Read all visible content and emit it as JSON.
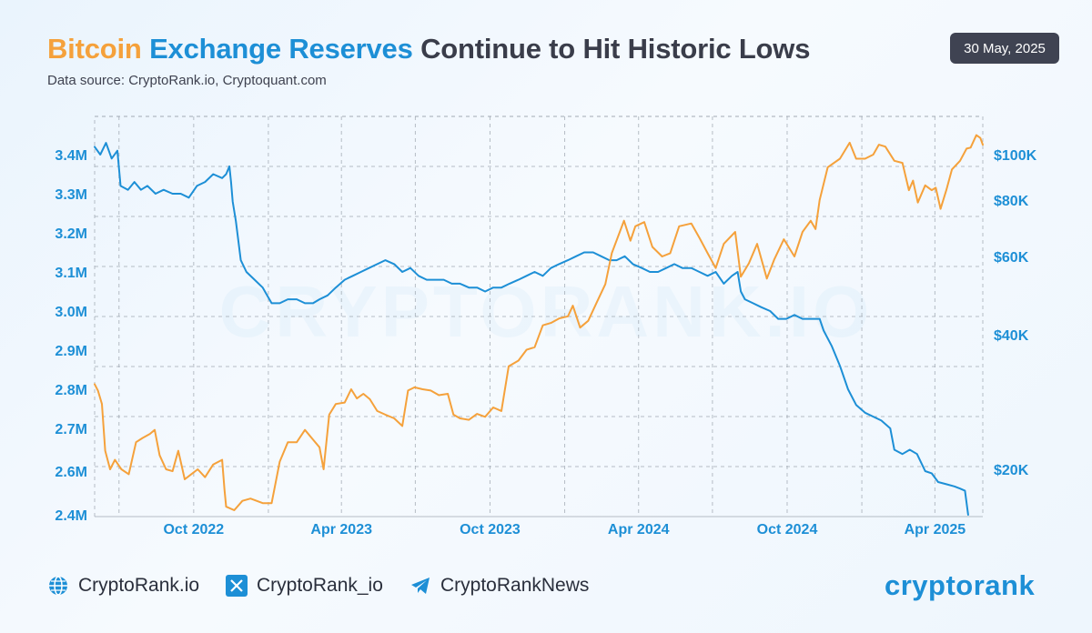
{
  "header": {
    "title_part1": "Bitcoin",
    "title_part2": "Exchange Reserves",
    "title_part3": "Continue to Hit Historic Lows",
    "subtitle": "Data source: CryptoRank.io, Cryptoquant.com",
    "date": "30 May, 2025"
  },
  "watermark": "CRYPTORANK.IO",
  "footer": {
    "website": "CryptoRank.io",
    "x_handle": "CryptoRank_io",
    "telegram": "CryptoRankNews",
    "brand": "cryptorank"
  },
  "colors": {
    "reserves": "#1d8fd6",
    "price": "#f5a13b",
    "title_dark": "#3a3d4a",
    "badge_bg": "#3f4352"
  },
  "chart_data": {
    "type": "line",
    "grid": true,
    "x_ticks": [
      {
        "label": "Oct 2022",
        "date": "2022-10-01"
      },
      {
        "label": "Apr 2023",
        "date": "2023-04-01"
      },
      {
        "label": "Oct 2023",
        "date": "2023-10-01"
      },
      {
        "label": "Apr 2024",
        "date": "2024-04-01"
      },
      {
        "label": "Oct 2024",
        "date": "2024-10-01"
      },
      {
        "label": "Apr 2025",
        "date": "2025-04-01"
      }
    ],
    "xlim": [
      "2022-06-01",
      "2025-05-30"
    ],
    "y_left": {
      "ticks": [
        {
          "label": "3.4M",
          "value": 3400000
        },
        {
          "label": "3.3M",
          "value": 3300000
        },
        {
          "label": "3.2M",
          "value": 3200000
        },
        {
          "label": "3.1M",
          "value": 3100000
        },
        {
          "label": "3.0M",
          "value": 3000000
        },
        {
          "label": "2.9M",
          "value": 2900000
        },
        {
          "label": "2.8M",
          "value": 2800000
        },
        {
          "label": "2.7M",
          "value": 2700000
        },
        {
          "label": "2.6M",
          "value": 2600000
        },
        {
          "label": "2.4M",
          "value": 2400000
        }
      ]
    },
    "y_right": {
      "ticks": [
        {
          "label": "$100K",
          "value": 100000
        },
        {
          "label": "$80K",
          "value": 80000
        },
        {
          "label": "$60K",
          "value": 60000
        },
        {
          "label": "$40K",
          "value": 40000
        },
        {
          "label": "$20K",
          "value": 20000
        }
      ]
    },
    "series": [
      {
        "axis": "left",
        "color": "#1d8fd6",
        "points": [
          [
            "2022-06-01",
            3420000
          ],
          [
            "2022-06-08",
            3400000
          ],
          [
            "2022-06-15",
            3430000
          ],
          [
            "2022-06-22",
            3390000
          ],
          [
            "2022-06-29",
            3410000
          ],
          [
            "2022-07-03",
            3320000
          ],
          [
            "2022-07-12",
            3310000
          ],
          [
            "2022-07-20",
            3330000
          ],
          [
            "2022-07-28",
            3310000
          ],
          [
            "2022-08-05",
            3320000
          ],
          [
            "2022-08-15",
            3300000
          ],
          [
            "2022-08-25",
            3310000
          ],
          [
            "2022-09-05",
            3300000
          ],
          [
            "2022-09-15",
            3300000
          ],
          [
            "2022-09-25",
            3290000
          ],
          [
            "2022-10-05",
            3320000
          ],
          [
            "2022-10-15",
            3330000
          ],
          [
            "2022-10-25",
            3350000
          ],
          [
            "2022-11-05",
            3340000
          ],
          [
            "2022-11-10",
            3350000
          ],
          [
            "2022-11-14",
            3370000
          ],
          [
            "2022-11-16",
            3330000
          ],
          [
            "2022-11-18",
            3280000
          ],
          [
            "2022-11-22",
            3230000
          ],
          [
            "2022-11-28",
            3130000
          ],
          [
            "2022-12-05",
            3100000
          ],
          [
            "2022-12-15",
            3080000
          ],
          [
            "2022-12-25",
            3060000
          ],
          [
            "2023-01-05",
            3020000
          ],
          [
            "2023-01-15",
            3020000
          ],
          [
            "2023-01-25",
            3030000
          ],
          [
            "2023-02-05",
            3030000
          ],
          [
            "2023-02-15",
            3020000
          ],
          [
            "2023-02-25",
            3020000
          ],
          [
            "2023-03-05",
            3030000
          ],
          [
            "2023-03-15",
            3040000
          ],
          [
            "2023-03-25",
            3060000
          ],
          [
            "2023-04-05",
            3080000
          ],
          [
            "2023-04-15",
            3090000
          ],
          [
            "2023-04-25",
            3100000
          ],
          [
            "2023-05-05",
            3110000
          ],
          [
            "2023-05-15",
            3120000
          ],
          [
            "2023-05-25",
            3130000
          ],
          [
            "2023-06-05",
            3120000
          ],
          [
            "2023-06-15",
            3100000
          ],
          [
            "2023-06-25",
            3110000
          ],
          [
            "2023-07-05",
            3090000
          ],
          [
            "2023-07-15",
            3080000
          ],
          [
            "2023-07-25",
            3080000
          ],
          [
            "2023-08-05",
            3080000
          ],
          [
            "2023-08-15",
            3070000
          ],
          [
            "2023-08-25",
            3070000
          ],
          [
            "2023-09-05",
            3060000
          ],
          [
            "2023-09-15",
            3060000
          ],
          [
            "2023-09-25",
            3050000
          ],
          [
            "2023-10-05",
            3060000
          ],
          [
            "2023-10-15",
            3060000
          ],
          [
            "2023-10-25",
            3070000
          ],
          [
            "2023-11-05",
            3080000
          ],
          [
            "2023-11-15",
            3090000
          ],
          [
            "2023-11-25",
            3100000
          ],
          [
            "2023-12-05",
            3090000
          ],
          [
            "2023-12-15",
            3110000
          ],
          [
            "2023-12-25",
            3120000
          ],
          [
            "2024-01-05",
            3130000
          ],
          [
            "2024-01-15",
            3140000
          ],
          [
            "2024-01-25",
            3150000
          ],
          [
            "2024-02-05",
            3150000
          ],
          [
            "2024-02-15",
            3140000
          ],
          [
            "2024-02-25",
            3130000
          ],
          [
            "2024-03-05",
            3130000
          ],
          [
            "2024-03-15",
            3140000
          ],
          [
            "2024-03-25",
            3120000
          ],
          [
            "2024-04-05",
            3110000
          ],
          [
            "2024-04-15",
            3100000
          ],
          [
            "2024-04-25",
            3100000
          ],
          [
            "2024-05-05",
            3110000
          ],
          [
            "2024-05-15",
            3120000
          ],
          [
            "2024-05-25",
            3110000
          ],
          [
            "2024-06-05",
            3110000
          ],
          [
            "2024-06-15",
            3100000
          ],
          [
            "2024-06-25",
            3090000
          ],
          [
            "2024-07-05",
            3100000
          ],
          [
            "2024-07-15",
            3070000
          ],
          [
            "2024-07-25",
            3090000
          ],
          [
            "2024-08-01",
            3100000
          ],
          [
            "2024-08-05",
            3050000
          ],
          [
            "2024-08-10",
            3030000
          ],
          [
            "2024-08-20",
            3020000
          ],
          [
            "2024-08-30",
            3010000
          ],
          [
            "2024-09-10",
            3000000
          ],
          [
            "2024-09-20",
            2980000
          ],
          [
            "2024-09-30",
            2980000
          ],
          [
            "2024-10-10",
            2990000
          ],
          [
            "2024-10-20",
            2980000
          ],
          [
            "2024-10-30",
            2980000
          ],
          [
            "2024-11-10",
            2980000
          ],
          [
            "2024-11-15",
            2950000
          ],
          [
            "2024-11-25",
            2910000
          ],
          [
            "2024-12-05",
            2860000
          ],
          [
            "2024-12-15",
            2800000
          ],
          [
            "2024-12-25",
            2760000
          ],
          [
            "2025-01-05",
            2740000
          ],
          [
            "2025-01-15",
            2730000
          ],
          [
            "2025-01-25",
            2720000
          ],
          [
            "2025-02-05",
            2700000
          ],
          [
            "2025-02-10",
            2650000
          ],
          [
            "2025-02-20",
            2640000
          ],
          [
            "2025-03-01",
            2650000
          ],
          [
            "2025-03-10",
            2640000
          ],
          [
            "2025-03-20",
            2600000
          ],
          [
            "2025-03-28",
            2590000
          ],
          [
            "2025-04-05",
            2550000
          ],
          [
            "2025-04-15",
            2540000
          ],
          [
            "2025-04-25",
            2530000
          ],
          [
            "2025-05-02",
            2520000
          ],
          [
            "2025-05-08",
            2510000
          ],
          [
            "2025-05-12",
            2400000
          ]
        ]
      },
      {
        "axis": "right",
        "color": "#f5a13b",
        "points": [
          [
            "2022-06-01",
            31000
          ],
          [
            "2022-06-05",
            30000
          ],
          [
            "2022-06-10",
            28000
          ],
          [
            "2022-06-14",
            22000
          ],
          [
            "2022-06-20",
            20000
          ],
          [
            "2022-06-26",
            21000
          ],
          [
            "2022-07-04",
            20000
          ],
          [
            "2022-07-13",
            19500
          ],
          [
            "2022-07-22",
            23000
          ],
          [
            "2022-07-30",
            23500
          ],
          [
            "2022-08-08",
            24000
          ],
          [
            "2022-08-14",
            24500
          ],
          [
            "2022-08-20",
            21500
          ],
          [
            "2022-08-28",
            20000
          ],
          [
            "2022-09-05",
            19800
          ],
          [
            "2022-09-12",
            22000
          ],
          [
            "2022-09-20",
            19000
          ],
          [
            "2022-09-28",
            19500
          ],
          [
            "2022-10-06",
            20000
          ],
          [
            "2022-10-15",
            19200
          ],
          [
            "2022-10-25",
            20500
          ],
          [
            "2022-11-05",
            21000
          ],
          [
            "2022-11-08",
            18000
          ],
          [
            "2022-11-10",
            16500
          ],
          [
            "2022-11-20",
            16200
          ],
          [
            "2022-11-30",
            17000
          ],
          [
            "2022-12-10",
            17200
          ],
          [
            "2022-12-25",
            16800
          ],
          [
            "2023-01-05",
            16800
          ],
          [
            "2023-01-15",
            20800
          ],
          [
            "2023-01-25",
            23000
          ],
          [
            "2023-02-05",
            23000
          ],
          [
            "2023-02-15",
            24500
          ],
          [
            "2023-02-25",
            23300
          ],
          [
            "2023-03-05",
            22400
          ],
          [
            "2023-03-10",
            20000
          ],
          [
            "2023-03-17",
            26500
          ],
          [
            "2023-03-25",
            28000
          ],
          [
            "2023-04-05",
            28200
          ],
          [
            "2023-04-13",
            30200
          ],
          [
            "2023-04-20",
            28800
          ],
          [
            "2023-04-28",
            29500
          ],
          [
            "2023-05-06",
            28700
          ],
          [
            "2023-05-15",
            27000
          ],
          [
            "2023-05-25",
            26500
          ],
          [
            "2023-06-05",
            26000
          ],
          [
            "2023-06-15",
            25000
          ],
          [
            "2023-06-22",
            30000
          ],
          [
            "2023-06-30",
            30500
          ],
          [
            "2023-07-10",
            30200
          ],
          [
            "2023-07-20",
            30000
          ],
          [
            "2023-07-30",
            29300
          ],
          [
            "2023-08-10",
            29500
          ],
          [
            "2023-08-17",
            26500
          ],
          [
            "2023-08-25",
            26000
          ],
          [
            "2023-09-05",
            25800
          ],
          [
            "2023-09-15",
            26600
          ],
          [
            "2023-09-25",
            26200
          ],
          [
            "2023-10-05",
            27500
          ],
          [
            "2023-10-15",
            27000
          ],
          [
            "2023-10-24",
            34000
          ],
          [
            "2023-11-05",
            35000
          ],
          [
            "2023-11-15",
            37000
          ],
          [
            "2023-11-25",
            37500
          ],
          [
            "2023-12-05",
            42000
          ],
          [
            "2023-12-15",
            42500
          ],
          [
            "2023-12-25",
            43500
          ],
          [
            "2024-01-05",
            44000
          ],
          [
            "2024-01-11",
            46500
          ],
          [
            "2024-01-20",
            41500
          ],
          [
            "2024-01-30",
            43000
          ],
          [
            "2024-02-10",
            47500
          ],
          [
            "2024-02-20",
            52000
          ],
          [
            "2024-02-28",
            61000
          ],
          [
            "2024-03-14",
            72000
          ],
          [
            "2024-03-22",
            65000
          ],
          [
            "2024-03-28",
            70000
          ],
          [
            "2024-04-08",
            71500
          ],
          [
            "2024-04-18",
            63000
          ],
          [
            "2024-04-30",
            60000
          ],
          [
            "2024-05-10",
            61000
          ],
          [
            "2024-05-21",
            70000
          ],
          [
            "2024-06-05",
            71000
          ],
          [
            "2024-06-15",
            66000
          ],
          [
            "2024-06-25",
            61000
          ],
          [
            "2024-07-05",
            56500
          ],
          [
            "2024-07-15",
            64000
          ],
          [
            "2024-07-29",
            68000
          ],
          [
            "2024-08-05",
            54000
          ],
          [
            "2024-08-15",
            58000
          ],
          [
            "2024-08-25",
            64000
          ],
          [
            "2024-09-06",
            53500
          ],
          [
            "2024-09-15",
            59000
          ],
          [
            "2024-09-27",
            65500
          ],
          [
            "2024-10-10",
            60000
          ],
          [
            "2024-10-20",
            68000
          ],
          [
            "2024-10-30",
            72000
          ],
          [
            "2024-11-05",
            69000
          ],
          [
            "2024-11-10",
            80000
          ],
          [
            "2024-11-20",
            94000
          ],
          [
            "2024-12-05",
            98000
          ],
          [
            "2024-12-17",
            106000
          ],
          [
            "2024-12-25",
            98000
          ],
          [
            "2025-01-05",
            98000
          ],
          [
            "2025-01-15",
            100000
          ],
          [
            "2025-01-22",
            105000
          ],
          [
            "2025-01-30",
            104000
          ],
          [
            "2025-02-10",
            97000
          ],
          [
            "2025-02-20",
            96000
          ],
          [
            "2025-02-28",
            84000
          ],
          [
            "2025-03-05",
            88000
          ],
          [
            "2025-03-11",
            79000
          ],
          [
            "2025-03-20",
            86000
          ],
          [
            "2025-03-28",
            84000
          ],
          [
            "2025-04-02",
            85000
          ],
          [
            "2025-04-08",
            76500
          ],
          [
            "2025-04-15",
            84000
          ],
          [
            "2025-04-22",
            93000
          ],
          [
            "2025-05-02",
            97000
          ],
          [
            "2025-05-10",
            103000
          ],
          [
            "2025-05-15",
            103500
          ],
          [
            "2025-05-22",
            110000
          ],
          [
            "2025-05-27",
            108500
          ],
          [
            "2025-05-30",
            105000
          ]
        ]
      }
    ]
  }
}
